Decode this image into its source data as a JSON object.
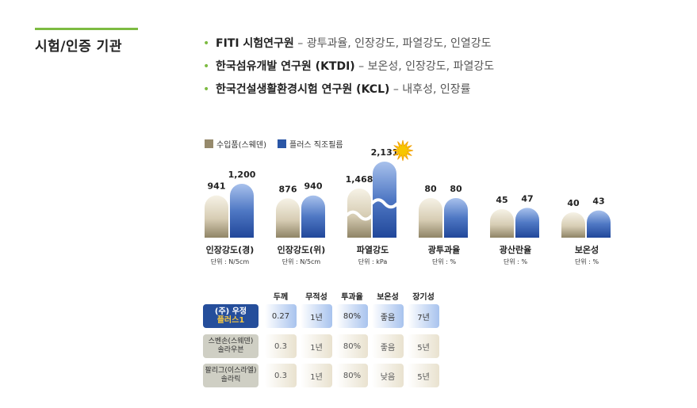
{
  "section_title": "시험/인증 기관",
  "bullets": [
    {
      "org": "FITI 시험연구원",
      "desc": " – 광투과율, 인장강도, 파열강도, 인열강도"
    },
    {
      "org": "한국섬유개발 연구원 (KTDI)",
      "desc": " – 보온성, 인장강도, 파열강도"
    },
    {
      "org": "한국건설생활환경시험 연구원 (KCL)",
      "desc": " – 내후성, 인장률"
    }
  ],
  "colors": {
    "accent_green": "#7dbb42",
    "imported": "#968a6c",
    "plus": "#2a56a6",
    "label_navy": "#254e9b"
  },
  "chart_data": {
    "type": "bar",
    "series": [
      {
        "name": "수입품(스웨덴)",
        "values": [
          941,
          876,
          1468,
          80,
          45,
          40
        ]
      },
      {
        "name": "플러스 직조필름",
        "values": [
          1200,
          940,
          2131,
          80,
          47,
          43
        ]
      }
    ],
    "categories": [
      {
        "label": "인장강도(경)",
        "unit": "단위 : N/5cm"
      },
      {
        "label": "인장강도(위)",
        "unit": "단위 : N/5cm"
      },
      {
        "label": "파열강도",
        "unit": "단위 : kPa"
      },
      {
        "label": "광투과율",
        "unit": "단위 : %"
      },
      {
        "label": "광산란율",
        "unit": "단위 : %"
      },
      {
        "label": "보온성",
        "unit": "단위 : %"
      }
    ],
    "value_labels": [
      [
        "941",
        "1,200"
      ],
      [
        "876",
        "940"
      ],
      [
        "1,468",
        "2,131"
      ],
      [
        "80",
        "80"
      ],
      [
        "45",
        "47"
      ],
      [
        "40",
        "43"
      ]
    ],
    "axis_break": {
      "category_index": 2
    },
    "highlight": {
      "category_index": 2,
      "series_index": 1
    }
  },
  "table": {
    "headers": [
      "두께",
      "무적성",
      "투과율",
      "보온성",
      "장기성"
    ],
    "rows": [
      {
        "label1": "(주) 우정",
        "label2": "플러스1",
        "values": [
          "0.27",
          "1년",
          "80%",
          "좋음",
          "7년"
        ]
      },
      {
        "label1": "스벤손(스웨덴)",
        "label2": "솔라우븐",
        "values": [
          "0.3",
          "1년",
          "80%",
          "좋음",
          "5년"
        ]
      },
      {
        "label1": "팔리그(이스라엘)",
        "label2": "솔라릭",
        "values": [
          "0.3",
          "1년",
          "80%",
          "낮음",
          "5년"
        ]
      }
    ]
  }
}
